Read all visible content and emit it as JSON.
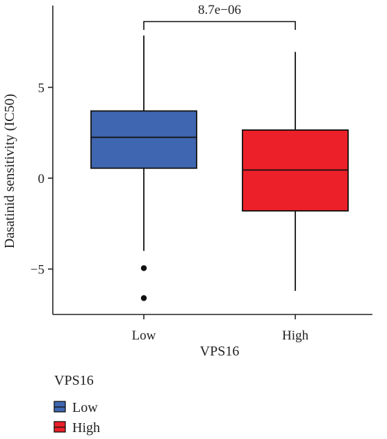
{
  "chart_data": {
    "type": "box",
    "xlabel": "VPS16",
    "ylabel": "Dasatinid sensitivity (IC50)",
    "categories": [
      "Low",
      "High"
    ],
    "ylim": [
      -7.5,
      9.5
    ],
    "yticks": [
      -5,
      0,
      5
    ],
    "ytick_labels": [
      "−5",
      "0",
      "5"
    ],
    "series": [
      {
        "name": "Low",
        "color": "#3f66b0",
        "min": -4.0,
        "q1": 0.55,
        "median": 2.25,
        "q3": 3.7,
        "max": 7.85,
        "outliers": [
          -4.95,
          -6.6
        ]
      },
      {
        "name": "High",
        "color": "#ec2028",
        "min": -6.2,
        "q1": -1.8,
        "median": 0.45,
        "q3": 2.65,
        "max": 6.95,
        "outliers": []
      }
    ],
    "annotation": {
      "text": "8.7e−06",
      "groups": [
        "Low",
        "High"
      ]
    },
    "legend": {
      "title": "VPS16",
      "position": "bottom-left",
      "items": [
        "Low",
        "High"
      ]
    },
    "grid": false
  }
}
